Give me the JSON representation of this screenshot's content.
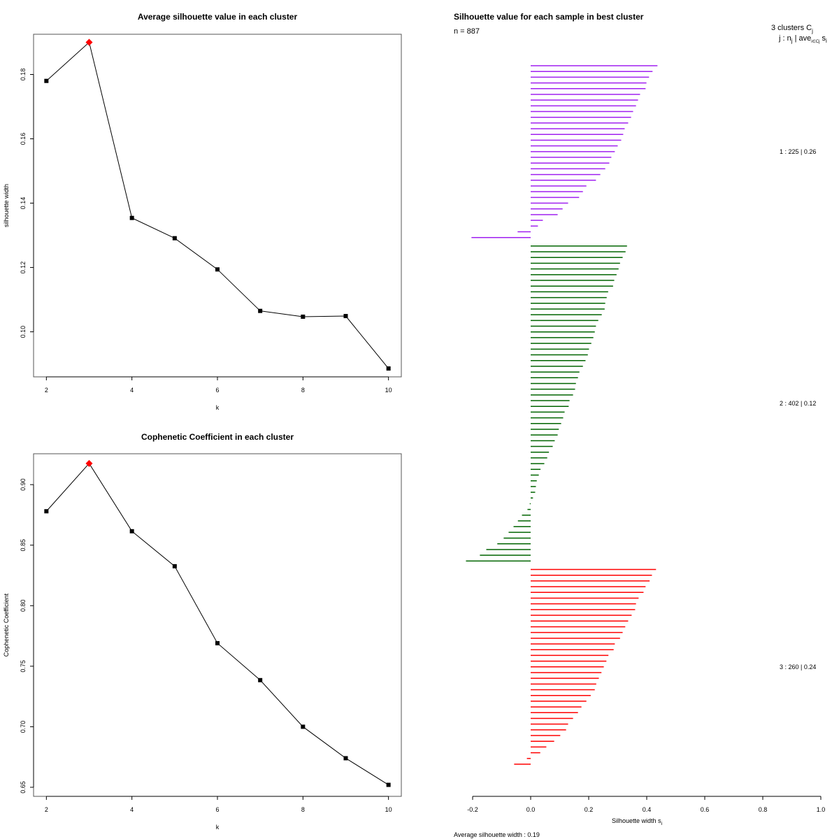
{
  "chart_data": [
    {
      "type": "line",
      "title": "Average silhouette value in each cluster",
      "xlabel": "k",
      "ylabel": "silhouette width",
      "x": [
        2,
        3,
        4,
        5,
        6,
        7,
        8,
        9,
        10
      ],
      "values": [
        0.178,
        0.19,
        0.1354,
        0.1291,
        0.1194,
        0.1065,
        0.1047,
        0.1049,
        0.0886
      ],
      "highlight_index": 1,
      "highlight_color": "#ff0000",
      "xlim": [
        1.7,
        10.3
      ],
      "ylim": [
        0.086,
        0.1925
      ],
      "xticks": [
        "2",
        "4",
        "6",
        "8",
        "10"
      ],
      "xtick_values": [
        2,
        4,
        6,
        8,
        10
      ],
      "yticks": [
        "0.10",
        "0.12",
        "0.14",
        "0.16",
        "0.18"
      ],
      "ytick_values": [
        0.1,
        0.12,
        0.14,
        0.16,
        0.18
      ]
    },
    {
      "type": "line",
      "title": "Cophenetic Coefficient in each cluster",
      "xlabel": "k",
      "ylabel": "Cophenetic Coefficient",
      "x": [
        2,
        3,
        4,
        5,
        6,
        7,
        8,
        9,
        10
      ],
      "values": [
        0.878,
        0.9175,
        0.8615,
        0.8326,
        0.769,
        0.7385,
        0.7,
        0.674,
        0.652
      ],
      "highlight_index": 1,
      "highlight_color": "#ff0000",
      "xlim": [
        1.7,
        10.3
      ],
      "ylim": [
        0.6425,
        0.9255
      ],
      "xticks": [
        "2",
        "4",
        "6",
        "8",
        "10"
      ],
      "xtick_values": [
        2,
        4,
        6,
        8,
        10
      ],
      "yticks": [
        "0.65",
        "0.70",
        "0.75",
        "0.80",
        "0.85",
        "0.90"
      ],
      "ytick_values": [
        0.65,
        0.7,
        0.75,
        0.8,
        0.85,
        0.9
      ]
    },
    {
      "type": "bar",
      "orientation": "horizontal",
      "title": "Silhouette value for each sample in best cluster",
      "subtitle": "n = 887",
      "xlabel": "Silhouette width s",
      "xlabel_sub": "i",
      "footer": "Average silhouette width :  0.19",
      "legend_header_1": "3  clusters  C",
      "legend_header_1_sub": "j",
      "legend_header_2": "j :  n",
      "legend_header_2_sub": "j",
      "legend_header_2_rest": " | ave",
      "legend_header_2_sub2": "i∈Cj",
      "legend_header_2_end": "  s",
      "legend_header_2_sub3": "i",
      "xlim": [
        -0.2,
        1.0
      ],
      "xticks": [
        "-0.2",
        "0.0",
        "0.2",
        "0.4",
        "0.6",
        "0.8",
        "1.0"
      ],
      "xtick_values": [
        -0.2,
        0.0,
        0.2,
        0.4,
        0.6,
        0.8,
        1.0
      ],
      "clusters": [
        {
          "label": "1 :   225  |  0.26",
          "id": 1,
          "n": 225,
          "avg": 0.26,
          "color": "#a020f0",
          "values": [
            0.437,
            0.42,
            0.408,
            0.399,
            0.396,
            0.377,
            0.37,
            0.363,
            0.353,
            0.346,
            0.336,
            0.324,
            0.319,
            0.312,
            0.3,
            0.29,
            0.278,
            0.271,
            0.257,
            0.24,
            0.225,
            0.192,
            0.18,
            0.167,
            0.129,
            0.11,
            0.093,
            0.042,
            0.025,
            -0.045,
            -0.204
          ]
        },
        {
          "label": "2 :   402  |  0.12",
          "id": 2,
          "n": 402,
          "avg": 0.12,
          "color": "#006400",
          "values": [
            0.332,
            0.327,
            0.317,
            0.308,
            0.303,
            0.296,
            0.288,
            0.284,
            0.267,
            0.262,
            0.257,
            0.255,
            0.245,
            0.233,
            0.225,
            0.221,
            0.216,
            0.209,
            0.201,
            0.197,
            0.189,
            0.18,
            0.168,
            0.163,
            0.156,
            0.153,
            0.146,
            0.134,
            0.131,
            0.117,
            0.112,
            0.105,
            0.097,
            0.093,
            0.083,
            0.076,
            0.063,
            0.057,
            0.047,
            0.034,
            0.028,
            0.021,
            0.018,
            0.0155,
            0.008,
            -0.003,
            -0.011,
            -0.03,
            -0.044,
            -0.059,
            -0.076,
            -0.093,
            -0.115,
            -0.153,
            -0.175,
            -0.223
          ]
        },
        {
          "label": "3 :   260  |  0.24",
          "id": 3,
          "n": 260,
          "avg": 0.24,
          "color": "#ff0000",
          "values": [
            0.432,
            0.418,
            0.41,
            0.396,
            0.389,
            0.372,
            0.363,
            0.36,
            0.348,
            0.336,
            0.326,
            0.317,
            0.308,
            0.29,
            0.286,
            0.268,
            0.261,
            0.252,
            0.244,
            0.235,
            0.226,
            0.221,
            0.207,
            0.192,
            0.175,
            0.163,
            0.146,
            0.129,
            0.122,
            0.102,
            0.081,
            0.054,
            0.033,
            -0.013,
            -0.057
          ]
        }
      ]
    }
  ]
}
